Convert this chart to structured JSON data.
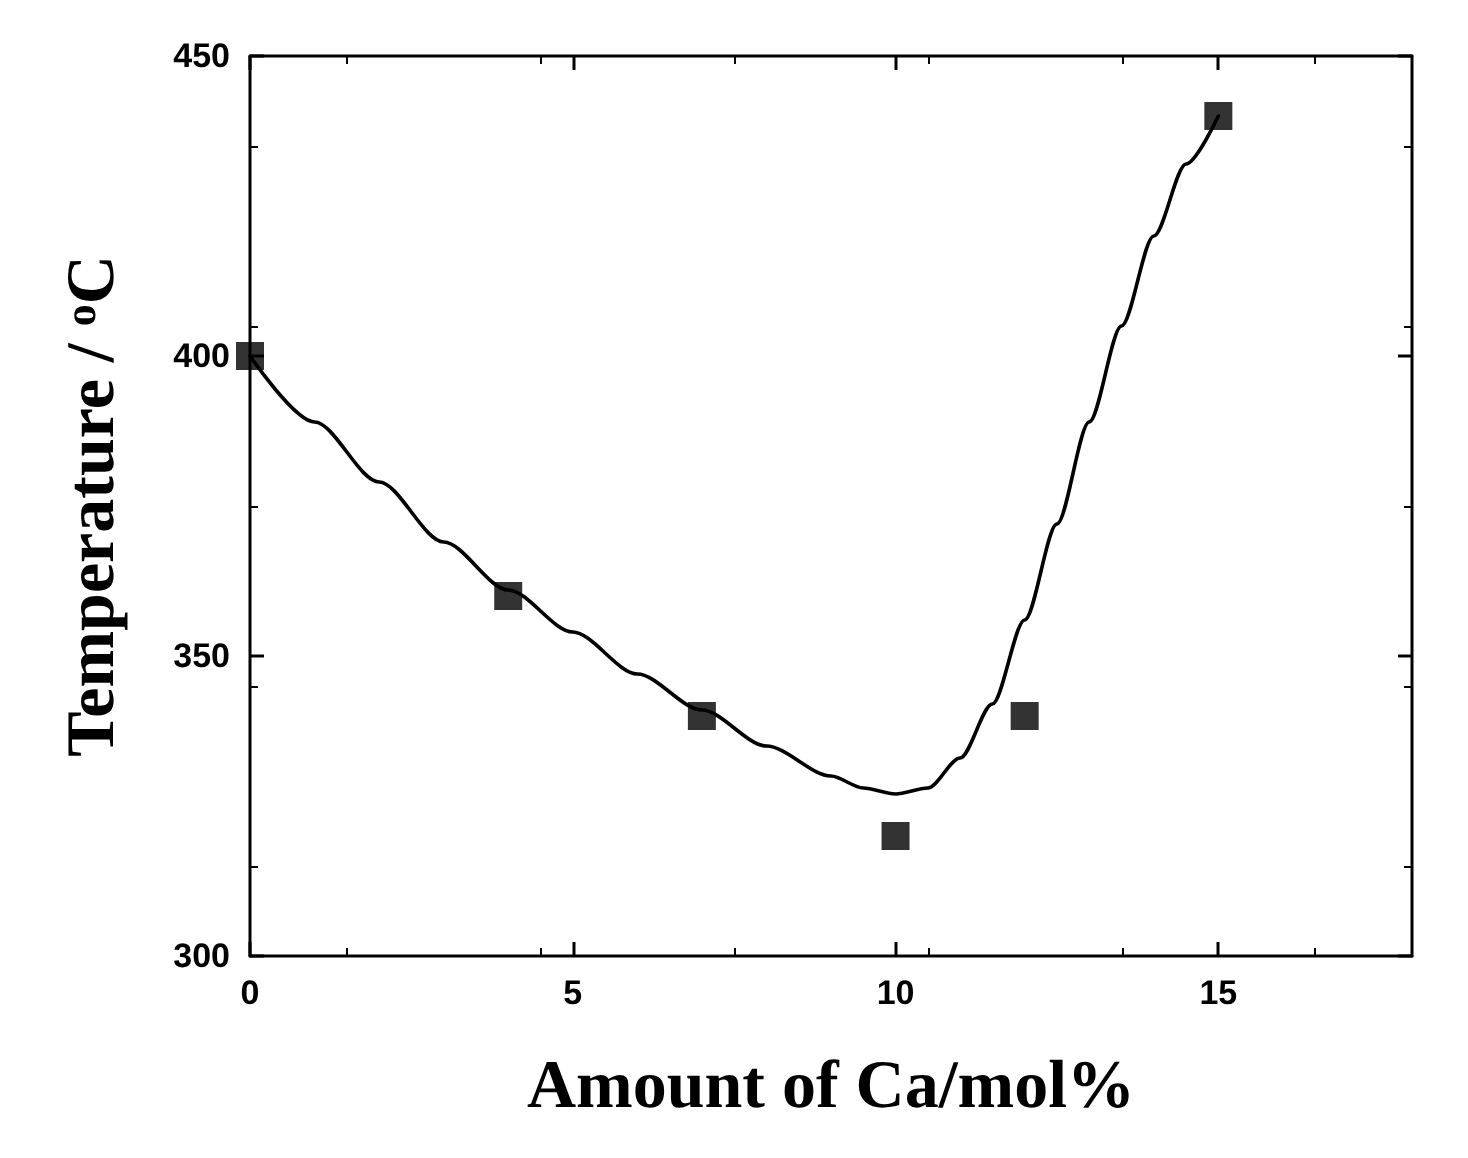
{
  "chart_data": {
    "type": "scatter",
    "xlabel": "Amount of Ca/mol%",
    "ylabel": "Temperature / $^{o}$C",
    "xlim": [
      0,
      18
    ],
    "xticks": [
      0,
      5,
      10,
      15
    ],
    "ylim": [
      300,
      450
    ],
    "yticks": [
      300,
      350,
      400,
      450
    ],
    "marker": "square",
    "grid": false,
    "series": [
      {
        "color": "#000000",
        "x": [
          0,
          4,
          7,
          10,
          12,
          15
        ],
        "values": [
          400,
          360,
          340,
          320,
          340,
          440
        ]
      },
      {
        "type": "line",
        "color": "#000000",
        "marker": "none",
        "line_style": "solid",
        "x": [
          0,
          1,
          2,
          3,
          4,
          5,
          6,
          7,
          8,
          9,
          9.5,
          10,
          10.5,
          11,
          11.5,
          12,
          12.5,
          13,
          13.5,
          14,
          14.5,
          15
        ],
        "values": [
          400,
          389,
          379,
          369,
          361,
          354,
          347,
          341,
          335,
          330,
          328,
          327,
          328,
          333,
          342,
          356,
          372,
          389,
          405,
          420,
          432,
          440
        ]
      }
    ]
  }
}
